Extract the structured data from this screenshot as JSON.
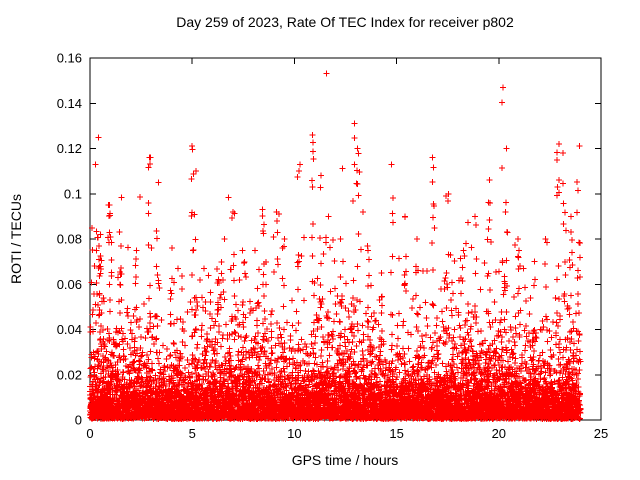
{
  "chart_data": {
    "type": "scatter",
    "title": "Day 259 of 2023, Rate Of TEC Index for receiver p802",
    "xlabel": "GPS time / hours",
    "ylabel": "ROTI / TECUs",
    "xlim": [
      0,
      25
    ],
    "ylim": [
      0,
      0.16
    ],
    "xticks": [
      0,
      5,
      10,
      15,
      20,
      25
    ],
    "xtick_labels": [
      "0",
      "5",
      "10",
      "15",
      "20",
      "25"
    ],
    "yticks": [
      0,
      0.02,
      0.04,
      0.06,
      0.08,
      0.1,
      0.12,
      0.14,
      0.16
    ],
    "ytick_labels": [
      "0",
      "0.02",
      "0.04",
      "0.06",
      "0.08",
      "0.1",
      "0.12",
      "0.14",
      "0.16"
    ],
    "grid": false,
    "legend": "none",
    "marker": "plus",
    "marker_color": "#ff0000",
    "axis_color": "#000000",
    "x_data_range": [
      0,
      24
    ],
    "point_generation": {
      "seed": 20230259,
      "base_count": 6500,
      "band_count": 2200,
      "exp_mean": 0.013,
      "y_floor": 0.0005,
      "y_max": 0.155
    },
    "spike_clusters": [
      [
        0.3,
        0.113,
        4
      ],
      [
        0.5,
        0.082,
        10
      ],
      [
        1.0,
        0.095,
        12
      ],
      [
        1.5,
        0.083,
        8
      ],
      [
        2.2,
        0.075,
        8
      ],
      [
        2.9,
        0.116,
        10
      ],
      [
        3.3,
        0.105,
        8
      ],
      [
        4.0,
        0.076,
        6
      ],
      [
        5.0,
        0.121,
        12
      ],
      [
        5.15,
        0.11,
        6
      ],
      [
        6.3,
        0.062,
        6
      ],
      [
        7.0,
        0.092,
        8
      ],
      [
        7.5,
        0.075,
        6
      ],
      [
        8.5,
        0.093,
        10
      ],
      [
        9.2,
        0.092,
        8
      ],
      [
        9.5,
        0.08,
        6
      ],
      [
        10.2,
        0.113,
        10
      ],
      [
        10.9,
        0.126,
        14
      ],
      [
        11.3,
        0.108,
        8
      ],
      [
        11.6,
        0.09,
        6
      ],
      [
        12.3,
        0.08,
        6
      ],
      [
        12.9,
        0.131,
        6
      ],
      [
        13.1,
        0.12,
        8
      ],
      [
        13.6,
        0.075,
        6
      ],
      [
        14.3,
        0.065,
        6
      ],
      [
        14.8,
        0.113,
        8
      ],
      [
        15.4,
        0.09,
        6
      ],
      [
        16.0,
        0.08,
        6
      ],
      [
        16.8,
        0.116,
        10
      ],
      [
        17.5,
        0.1,
        8
      ],
      [
        18.2,
        0.075,
        6
      ],
      [
        18.9,
        0.09,
        6
      ],
      [
        19.5,
        0.106,
        8
      ],
      [
        20.2,
        0.147,
        6
      ],
      [
        20.35,
        0.12,
        10
      ],
      [
        21.0,
        0.08,
        6
      ],
      [
        21.7,
        0.07,
        6
      ],
      [
        22.3,
        0.08,
        6
      ],
      [
        22.9,
        0.122,
        12
      ],
      [
        23.2,
        0.118,
        10
      ],
      [
        23.5,
        0.09,
        8
      ],
      [
        23.9,
        0.121,
        10
      ]
    ]
  }
}
